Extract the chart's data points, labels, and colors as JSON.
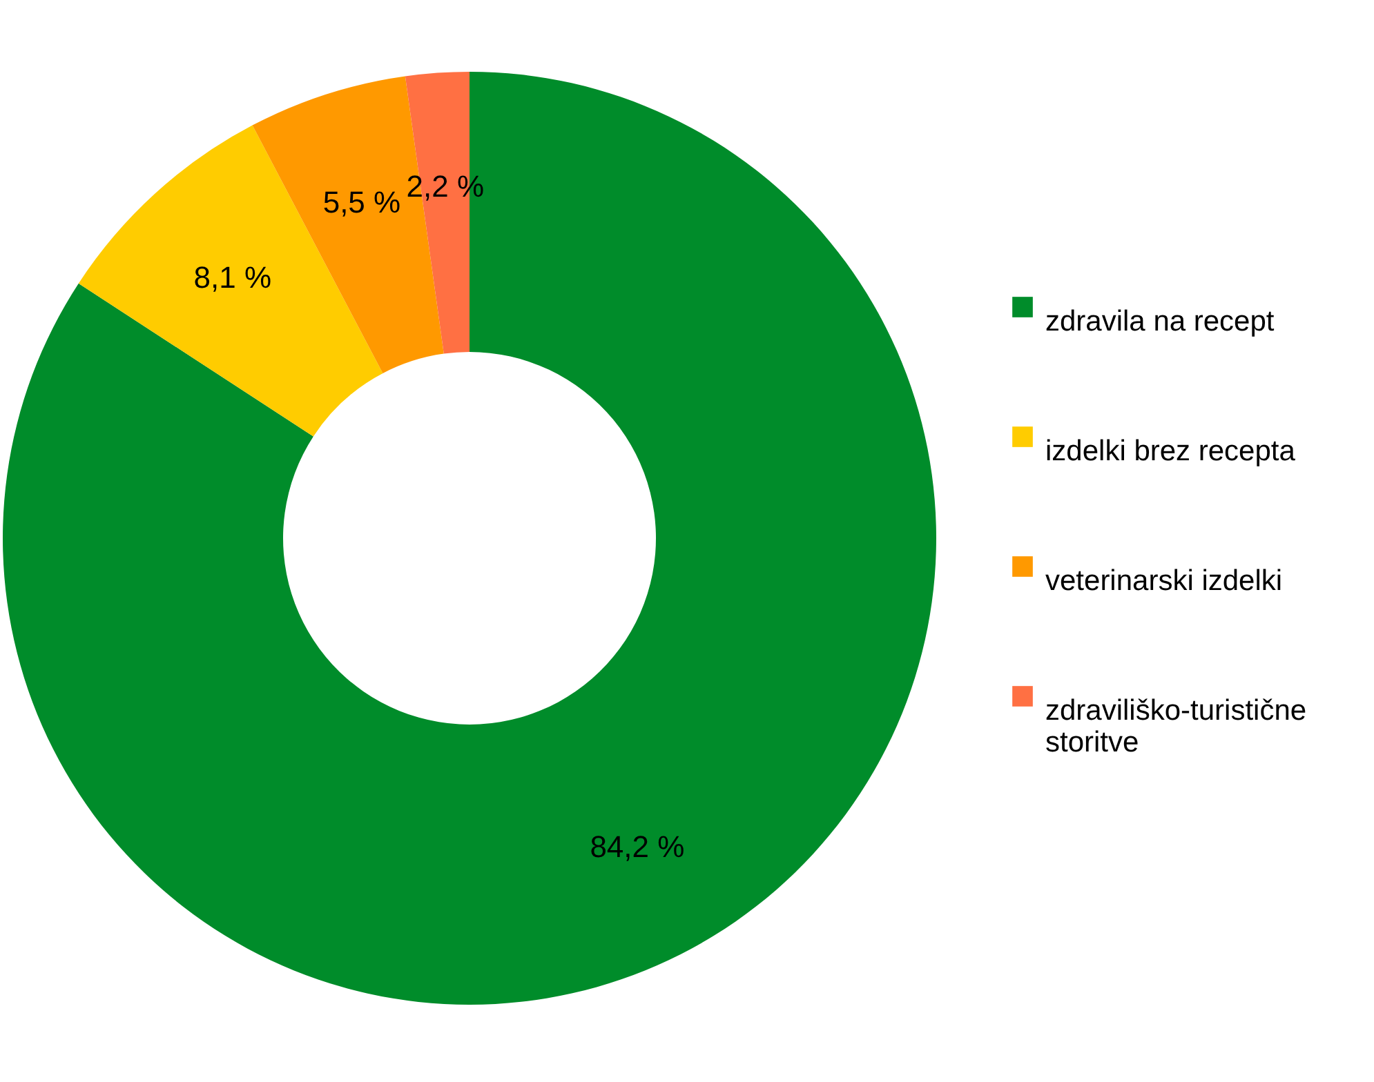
{
  "chart_data": {
    "type": "donut",
    "categories": [
      "zdravila na recept",
      "izdelki brez recepta",
      "veterinarski izdelki",
      "zdraviliško-turistične storitve"
    ],
    "values": [
      84.2,
      8.1,
      5.5,
      2.2
    ],
    "colors": [
      "#008c2a",
      "#ffcc00",
      "#ff9900",
      "#ff7043"
    ],
    "value_labels": [
      "84,2 %",
      "8,1 %",
      "5,5 %",
      "2,2 %"
    ],
    "legend": "right"
  }
}
